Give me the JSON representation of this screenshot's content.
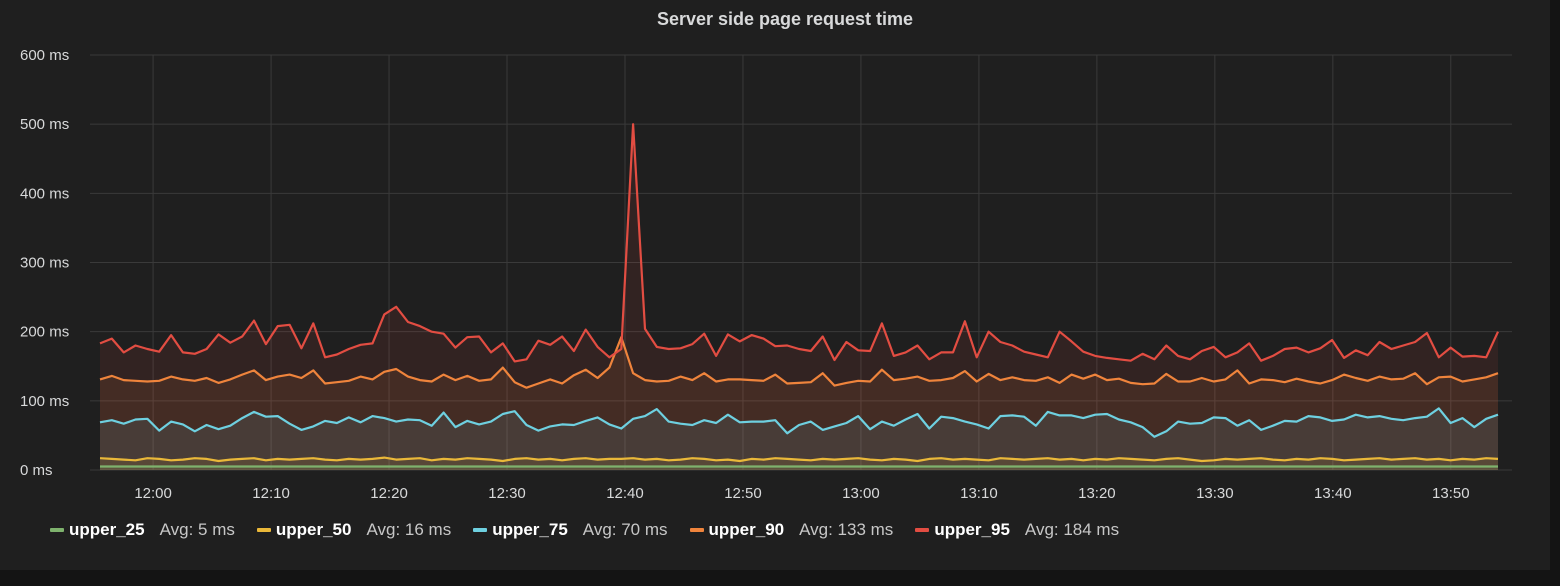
{
  "panel": {
    "title": "Server side page request time"
  },
  "legend": {
    "items": [
      {
        "name": "upper_25",
        "avg": "Avg: 5 ms",
        "color": "#7eb26d"
      },
      {
        "name": "upper_50",
        "avg": "Avg: 16 ms",
        "color": "#eab839"
      },
      {
        "name": "upper_75",
        "avg": "Avg: 70 ms",
        "color": "#6ed0e0"
      },
      {
        "name": "upper_90",
        "avg": "Avg: 133 ms",
        "color": "#ef843c"
      },
      {
        "name": "upper_95",
        "avg": "Avg: 184 ms",
        "color": "#e24d42"
      }
    ]
  },
  "chart_data": {
    "type": "area",
    "title": "Server side page request time",
    "xlabel": "",
    "ylabel": "",
    "y_unit": "ms",
    "ylim": [
      0,
      600
    ],
    "y_ticks": [
      0,
      100,
      200,
      300,
      400,
      500,
      600
    ],
    "y_tick_labels": [
      "0 ms",
      "100 ms",
      "200 ms",
      "300 ms",
      "400 ms",
      "500 ms",
      "600 ms"
    ],
    "x_tick_labels": [
      "12:00",
      "12:10",
      "12:20",
      "12:30",
      "12:40",
      "12:50",
      "13:00",
      "13:10",
      "13:20",
      "13:30",
      "13:40",
      "13:50"
    ],
    "x_tick_minutes": [
      720,
      730,
      740,
      750,
      760,
      770,
      780,
      790,
      800,
      810,
      820,
      830
    ],
    "xlim_minutes": [
      715.5,
      834.0
    ],
    "grid": true,
    "legend_position": "bottom",
    "sample_interval_min": 1,
    "series": [
      {
        "name": "upper_25",
        "color": "#7eb26d",
        "values": [
          5,
          5,
          5,
          5,
          5,
          5,
          5,
          5,
          5,
          5,
          5,
          5,
          5,
          5,
          5,
          5,
          5,
          5,
          5,
          5,
          5,
          5,
          5,
          5,
          5,
          5,
          5,
          5,
          5,
          5,
          5,
          5,
          5,
          5,
          5,
          5,
          5,
          5,
          5,
          5,
          5,
          5,
          5,
          5,
          5,
          5,
          5,
          5,
          5,
          5,
          5,
          5,
          5,
          5,
          5,
          5,
          5,
          5,
          5,
          5,
          5,
          5,
          5,
          5,
          5,
          5,
          5,
          5,
          5,
          5,
          5,
          5,
          5,
          5,
          5,
          5,
          5,
          5,
          5,
          5,
          5,
          5,
          5,
          5,
          5,
          5,
          5,
          5,
          5,
          5,
          5,
          5,
          5,
          5,
          5,
          5,
          5,
          5,
          5,
          5,
          5,
          5,
          5,
          5,
          5,
          5,
          5,
          5,
          5,
          5,
          5,
          5,
          5,
          5,
          5,
          5,
          5,
          5,
          5
        ]
      },
      {
        "name": "upper_50",
        "color": "#eab839",
        "values": [
          17,
          16,
          15,
          14,
          17,
          16,
          14,
          15,
          17,
          16,
          13,
          15,
          16,
          17,
          14,
          16,
          15,
          16,
          17,
          15,
          14,
          16,
          15,
          16,
          18,
          15,
          16,
          17,
          14,
          16,
          15,
          17,
          16,
          15,
          13,
          16,
          17,
          15,
          16,
          14,
          16,
          17,
          15,
          16,
          16,
          17,
          15,
          16,
          14,
          15,
          17,
          16,
          14,
          15,
          13,
          16,
          15,
          17,
          16,
          15,
          14,
          16,
          15,
          16,
          17,
          15,
          14,
          16,
          15,
          13,
          16,
          17,
          15,
          16,
          15,
          14,
          17,
          16,
          15,
          16,
          17,
          15,
          16,
          14,
          16,
          15,
          17,
          16,
          15,
          14,
          16,
          17,
          15,
          13,
          14,
          16,
          15,
          16,
          17,
          15,
          14,
          16,
          15,
          17,
          16,
          14,
          15,
          16,
          17,
          15,
          16,
          17,
          15,
          16,
          14,
          16,
          15,
          17,
          16
        ]
      },
      {
        "name": "upper_75",
        "color": "#6ed0e0",
        "values": [
          69,
          72,
          67,
          73,
          74,
          57,
          70,
          66,
          56,
          65,
          59,
          64,
          75,
          84,
          77,
          78,
          67,
          58,
          63,
          71,
          68,
          76,
          69,
          78,
          75,
          70,
          73,
          72,
          64,
          83,
          62,
          71,
          66,
          70,
          81,
          85,
          65,
          57,
          63,
          66,
          65,
          71,
          76,
          66,
          60,
          74,
          78,
          88,
          70,
          67,
          65,
          72,
          68,
          80,
          69,
          70,
          70,
          72,
          53,
          65,
          70,
          58,
          63,
          68,
          78,
          59,
          70,
          64,
          73,
          81,
          60,
          77,
          75,
          70,
          66,
          60,
          78,
          79,
          77,
          64,
          84,
          79,
          79,
          75,
          80,
          81,
          73,
          69,
          62,
          48,
          56,
          70,
          67,
          68,
          76,
          75,
          64,
          72,
          58,
          64,
          71,
          70,
          78,
          76,
          71,
          73,
          80,
          76,
          78,
          74,
          72,
          75,
          77,
          89,
          68,
          75,
          62,
          74,
          80
        ]
      },
      {
        "name": "upper_90",
        "color": "#ef843c",
        "values": [
          131,
          136,
          130,
          129,
          128,
          129,
          135,
          131,
          129,
          133,
          126,
          131,
          138,
          144,
          130,
          135,
          138,
          133,
          144,
          125,
          127,
          129,
          135,
          131,
          142,
          146,
          135,
          130,
          128,
          138,
          130,
          136,
          129,
          131,
          148,
          127,
          119,
          125,
          131,
          125,
          137,
          145,
          133,
          148,
          192,
          140,
          130,
          128,
          129,
          135,
          130,
          140,
          128,
          131,
          131,
          130,
          129,
          138,
          125,
          126,
          127,
          140,
          122,
          126,
          129,
          128,
          145,
          130,
          132,
          135,
          129,
          130,
          133,
          143,
          128,
          139,
          130,
          134,
          130,
          129,
          134,
          126,
          138,
          132,
          138,
          130,
          132,
          126,
          124,
          125,
          139,
          128,
          128,
          133,
          128,
          131,
          144,
          125,
          131,
          130,
          127,
          132,
          128,
          125,
          130,
          138,
          133,
          129,
          135,
          131,
          132,
          140,
          124,
          134,
          135,
          128,
          131,
          134,
          140
        ]
      },
      {
        "name": "upper_95",
        "color": "#e24d42",
        "values": [
          183,
          190,
          170,
          180,
          175,
          171,
          195,
          170,
          168,
          175,
          196,
          184,
          193,
          216,
          182,
          208,
          210,
          176,
          212,
          163,
          167,
          175,
          181,
          183,
          225,
          236,
          214,
          208,
          200,
          197,
          177,
          192,
          193,
          170,
          183,
          157,
          160,
          187,
          181,
          193,
          172,
          203,
          178,
          163,
          175,
          500,
          204,
          178,
          175,
          176,
          182,
          197,
          165,
          196,
          186,
          195,
          190,
          179,
          180,
          175,
          172,
          193,
          159,
          185,
          173,
          172,
          212,
          165,
          170,
          180,
          160,
          170,
          170,
          215,
          163,
          200,
          185,
          180,
          171,
          167,
          163,
          200,
          186,
          171,
          165,
          162,
          160,
          158,
          168,
          160,
          180,
          165,
          160,
          172,
          178,
          163,
          170,
          183,
          158,
          165,
          175,
          177,
          170,
          176,
          188,
          162,
          173,
          166,
          185,
          175,
          180,
          185,
          198,
          163,
          177,
          164,
          165,
          163,
          200
        ]
      }
    ]
  }
}
